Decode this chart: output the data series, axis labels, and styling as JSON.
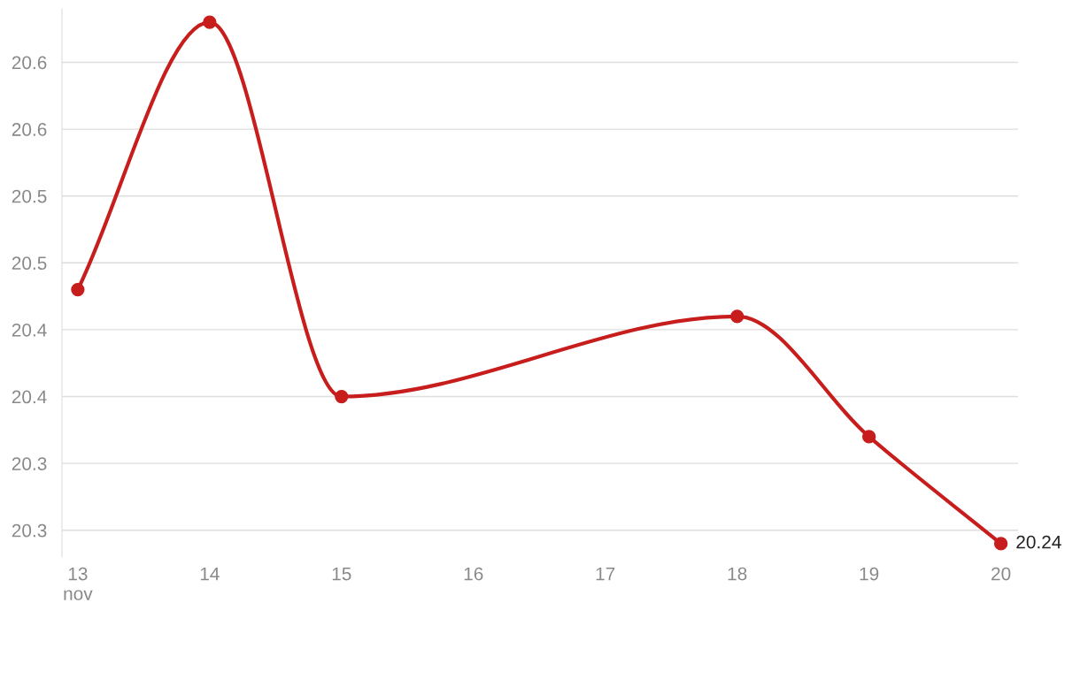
{
  "chart_data": {
    "type": "line",
    "series": [
      {
        "color": "#c71e1d",
        "x": [
          13,
          14,
          15,
          18,
          19,
          20
        ],
        "values": [
          20.43,
          20.63,
          20.35,
          20.41,
          20.32,
          20.24
        ],
        "value_labels": [
          null,
          null,
          null,
          null,
          null,
          "20.24"
        ]
      }
    ],
    "xlim": [
      12.88,
      20.13
    ],
    "ylim": [
      20.23,
      20.64
    ],
    "xticks": [
      {
        "value": 13,
        "label": "13\nnov"
      },
      14,
      15,
      16,
      17,
      18,
      19,
      20
    ],
    "yticks": [
      {
        "value": 20.25,
        "label": "20.3"
      },
      {
        "value": 20.3,
        "label": "20.3"
      },
      {
        "value": 20.35,
        "label": "20.4"
      },
      {
        "value": 20.4,
        "label": "20.4"
      },
      {
        "value": 20.45,
        "label": "20.5"
      },
      {
        "value": 20.5,
        "label": "20.5"
      },
      {
        "value": 20.55,
        "label": "20.6"
      },
      {
        "value": 20.6,
        "label": "20.6"
      }
    ],
    "grid": "y",
    "marker": "circle",
    "line_style": "solid",
    "legend": false
  }
}
